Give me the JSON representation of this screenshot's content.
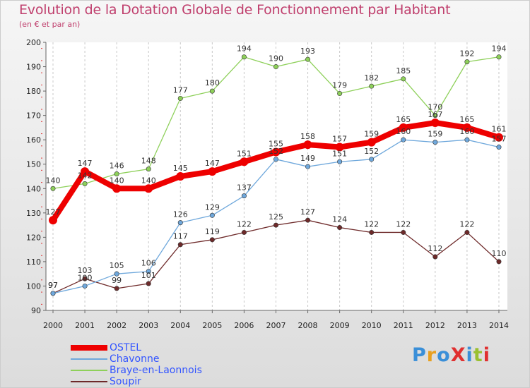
{
  "title": "Evolution de la Dotation Globale de Fonctionnement par Habitant",
  "subtitle": "(en € et par an)",
  "logo": {
    "text": "ProXiti",
    "colors": [
      "#3a8fd8",
      "#e8a020",
      "#3a8fd8",
      "#e03030",
      "#3a8fd8",
      "#9ac030",
      "#e03030"
    ]
  },
  "chart_data": {
    "type": "line",
    "categories": [
      "2000",
      "2001",
      "2002",
      "2003",
      "2004",
      "2005",
      "2006",
      "2007",
      "2008",
      "2009",
      "2010",
      "2011",
      "2012",
      "2013",
      "2014"
    ],
    "ylim": [
      90,
      200
    ],
    "yticks": [
      90,
      100,
      110,
      120,
      130,
      140,
      150,
      160,
      170,
      180,
      190,
      200
    ],
    "grid": "vertical",
    "legend_position": "bottom-left",
    "series": [
      {
        "name": "OSTEL",
        "color": "#ee0000",
        "thickness": "thick",
        "label_pos": "above",
        "values": [
          127,
          147,
          140,
          140,
          145,
          147,
          151,
          155,
          158,
          157,
          159,
          165,
          167,
          165,
          161
        ]
      },
      {
        "name": "Chavonne",
        "color": "#6fa8dc",
        "thickness": "thin",
        "label_pos": "above",
        "values": [
          97,
          100,
          105,
          106,
          126,
          129,
          137,
          152,
          149,
          151,
          152,
          160,
          159,
          160,
          157
        ]
      },
      {
        "name": "Braye-en-Laonnois",
        "color": "#8ed05a",
        "thickness": "thin",
        "label_pos": "above",
        "values": [
          140,
          142,
          146,
          148,
          177,
          180,
          194,
          190,
          193,
          179,
          182,
          185,
          170,
          192,
          194
        ]
      },
      {
        "name": "Soupir",
        "color": "#6e2a2a",
        "thickness": "thin",
        "label_pos": "above",
        "values": [
          97,
          103,
          99,
          101,
          117,
          119,
          122,
          125,
          127,
          124,
          122,
          122,
          112,
          122,
          110
        ]
      }
    ]
  }
}
